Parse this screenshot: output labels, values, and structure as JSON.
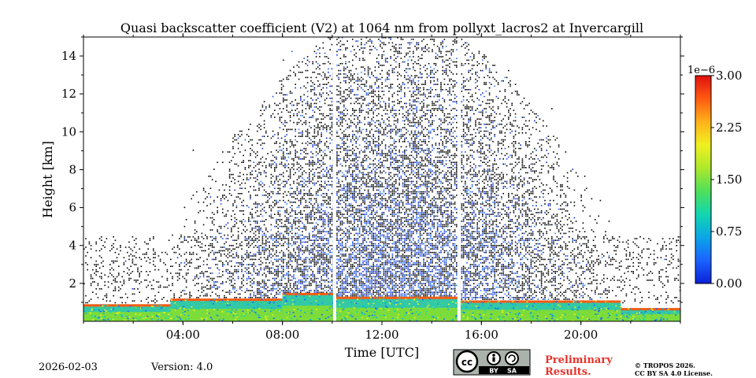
{
  "chart_data": {
    "type": "heatmap",
    "title": "Quasi backscatter coefficient (V2) at 1064 nm from pollyxt_lacros2 at Invercargill",
    "xlabel": "Time [UTC]",
    "ylabel": "Height [km]",
    "xlim_hours": [
      0,
      24
    ],
    "ylim_km": [
      0,
      15
    ],
    "x_ticks": [
      {
        "hour": 4,
        "label": "04:00"
      },
      {
        "hour": 8,
        "label": "08:00"
      },
      {
        "hour": 12,
        "label": "12:00"
      },
      {
        "hour": 16,
        "label": "16:00"
      },
      {
        "hour": 20,
        "label": "20:00"
      }
    ],
    "y_ticks": [
      {
        "km": 2,
        "label": "2"
      },
      {
        "km": 4,
        "label": "4"
      },
      {
        "km": 6,
        "label": "6"
      },
      {
        "km": 8,
        "label": "8"
      },
      {
        "km": 10,
        "label": "10"
      },
      {
        "km": 12,
        "label": "12"
      },
      {
        "km": 14,
        "label": "14"
      }
    ],
    "colorbar": {
      "min": 0.0,
      "max": 3.0,
      "scale_label": "1e−6",
      "ticks": [
        {
          "value": 0.0,
          "label": "0.00"
        },
        {
          "value": 0.75,
          "label": "0.75"
        },
        {
          "value": 1.5,
          "label": "1.50"
        },
        {
          "value": 2.25,
          "label": "2.25"
        },
        {
          "value": 3.0,
          "label": "3.00"
        }
      ],
      "colormap": [
        "#0b1fd6",
        "#1b63ff",
        "#0aa6e8",
        "#12d6b0",
        "#4fe05a",
        "#aee82c",
        "#f0f020",
        "#ffb21a",
        "#ff5a10",
        "#e01010"
      ]
    },
    "data_gaps_hours": [
      10.1,
      15.1
    ],
    "boundary_layer": {
      "aerosol_top_km_by_period": [
        {
          "start_h": 0.0,
          "end_h": 3.5,
          "top_km": 0.9
        },
        {
          "start_h": 3.5,
          "end_h": 8.0,
          "top_km": 1.2
        },
        {
          "start_h": 8.0,
          "end_h": 10.1,
          "top_km": 1.5
        },
        {
          "start_h": 10.1,
          "end_h": 15.1,
          "top_km": 1.3
        },
        {
          "start_h": 15.1,
          "end_h": 21.6,
          "top_km": 1.1
        },
        {
          "start_h": 21.6,
          "end_h": 24.0,
          "top_km": 0.7
        }
      ]
    }
  },
  "footer": {
    "date": "2026-02-03",
    "version": "Version: 4.0",
    "license_badge": {
      "left": "BY",
      "right": "SA"
    },
    "preliminary_line1": "Preliminary",
    "preliminary_line2": "Results.",
    "copyright_line1": "© TROPOS 2026.",
    "copyright_line2": "CC BY SA 4.0 License."
  }
}
